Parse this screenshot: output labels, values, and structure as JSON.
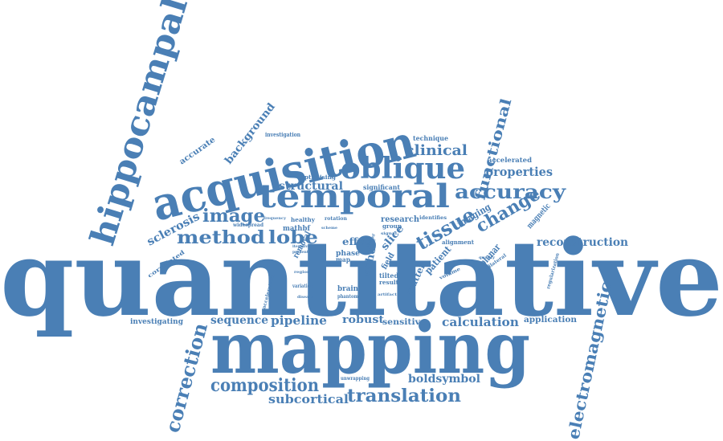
{
  "color": "#4a7fb5",
  "words": [
    "quantitative",
    "mapping",
    "acquisition",
    "hippocampal",
    "temporal",
    "oblique",
    "method",
    "lobe",
    "accuracy",
    "tissue",
    "change",
    "functional",
    "correction",
    "electromagnetic",
    "composition",
    "translation",
    "image",
    "clinical",
    "properties",
    "reconstruction",
    "sequence",
    "pipeline",
    "robust",
    "calculation",
    "subcortical",
    "boldsymbol",
    "structural",
    "sclerosis",
    "background",
    "accurate",
    "accelerated",
    "technique",
    "investigation",
    "imaging",
    "magnetic",
    "planar",
    "patient",
    "matter",
    "slice",
    "echo",
    "effect",
    "research",
    "application",
    "sensitive",
    "investigating",
    "alignment",
    "optimising",
    "significant",
    "mathbf",
    "healthy",
    "frequency",
    "rotation",
    "identifies",
    "removal",
    "phase",
    "group",
    "tilted",
    "brain",
    "result",
    "field",
    "map",
    "correlated",
    "widespread",
    "unwrapping",
    "regularization",
    "acceleration",
    "variation",
    "phantom",
    "artifact",
    "bilateral",
    "volume",
    "disease",
    "control",
    "scheme",
    "iterative",
    "present",
    "quality",
    "signal",
    "region"
  ]
}
